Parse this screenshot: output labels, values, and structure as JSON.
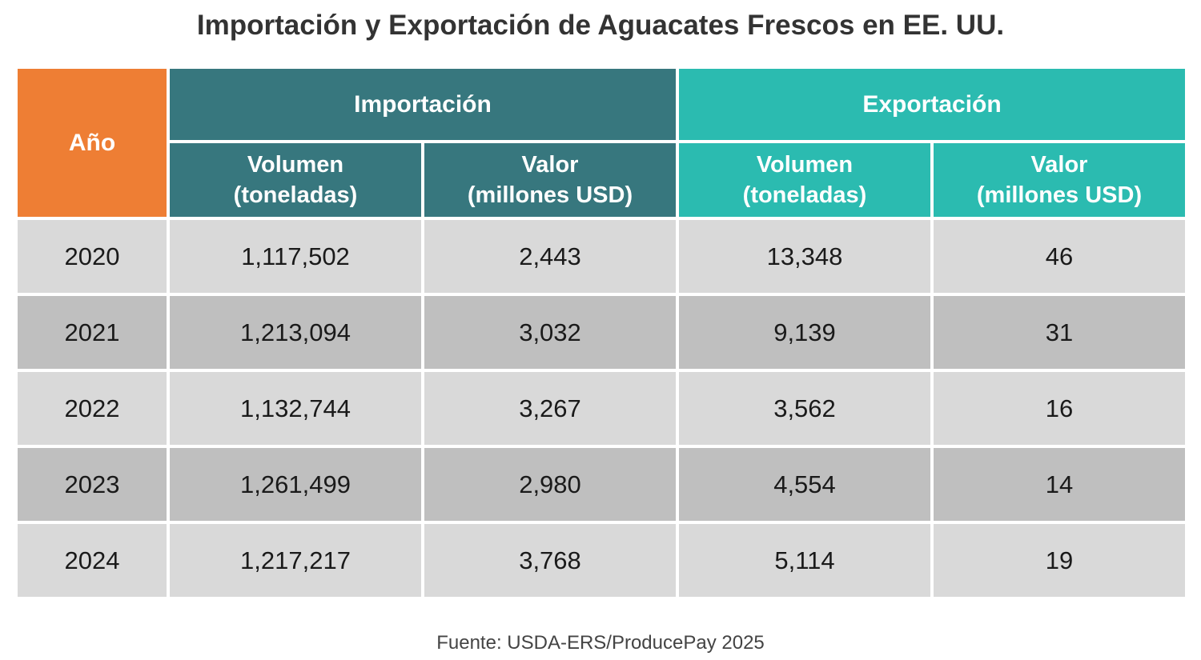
{
  "title": "Importación y Exportación de Aguacates Frescos en EE. UU.",
  "source": "Fuente: USDA-ERS/ProducePay 2025",
  "colors": {
    "year_header": "#ee7e34",
    "import_header": "#37777e",
    "export_header": "#2bbbb0",
    "row_light": "#d9d9d9",
    "row_dark": "#bfbfbf"
  },
  "chart_data": {
    "type": "table",
    "title": "Importación y Exportación de Aguacates Frescos en EE. UU.",
    "header": {
      "year": "Año",
      "import": "Importación",
      "export": "Exportación",
      "volume_line1": "Volumen",
      "volume_line2": "(toneladas)",
      "value_line1": "Valor",
      "value_line2": "(millones USD)"
    },
    "rows": [
      {
        "year": "2020",
        "imp_vol": "1,117,502",
        "imp_val": "2,443",
        "exp_vol": "13,348",
        "exp_val": "46"
      },
      {
        "year": "2021",
        "imp_vol": "1,213,094",
        "imp_val": "3,032",
        "exp_vol": "9,139",
        "exp_val": "31"
      },
      {
        "year": "2022",
        "imp_vol": "1,132,744",
        "imp_val": "3,267",
        "exp_vol": "3,562",
        "exp_val": "16"
      },
      {
        "year": "2023",
        "imp_vol": "1,261,499",
        "imp_val": "2,980",
        "exp_vol": "4,554",
        "exp_val": "14"
      },
      {
        "year": "2024",
        "imp_vol": "1,217,217",
        "imp_val": "3,768",
        "exp_vol": "5,114",
        "exp_val": "19"
      }
    ]
  }
}
